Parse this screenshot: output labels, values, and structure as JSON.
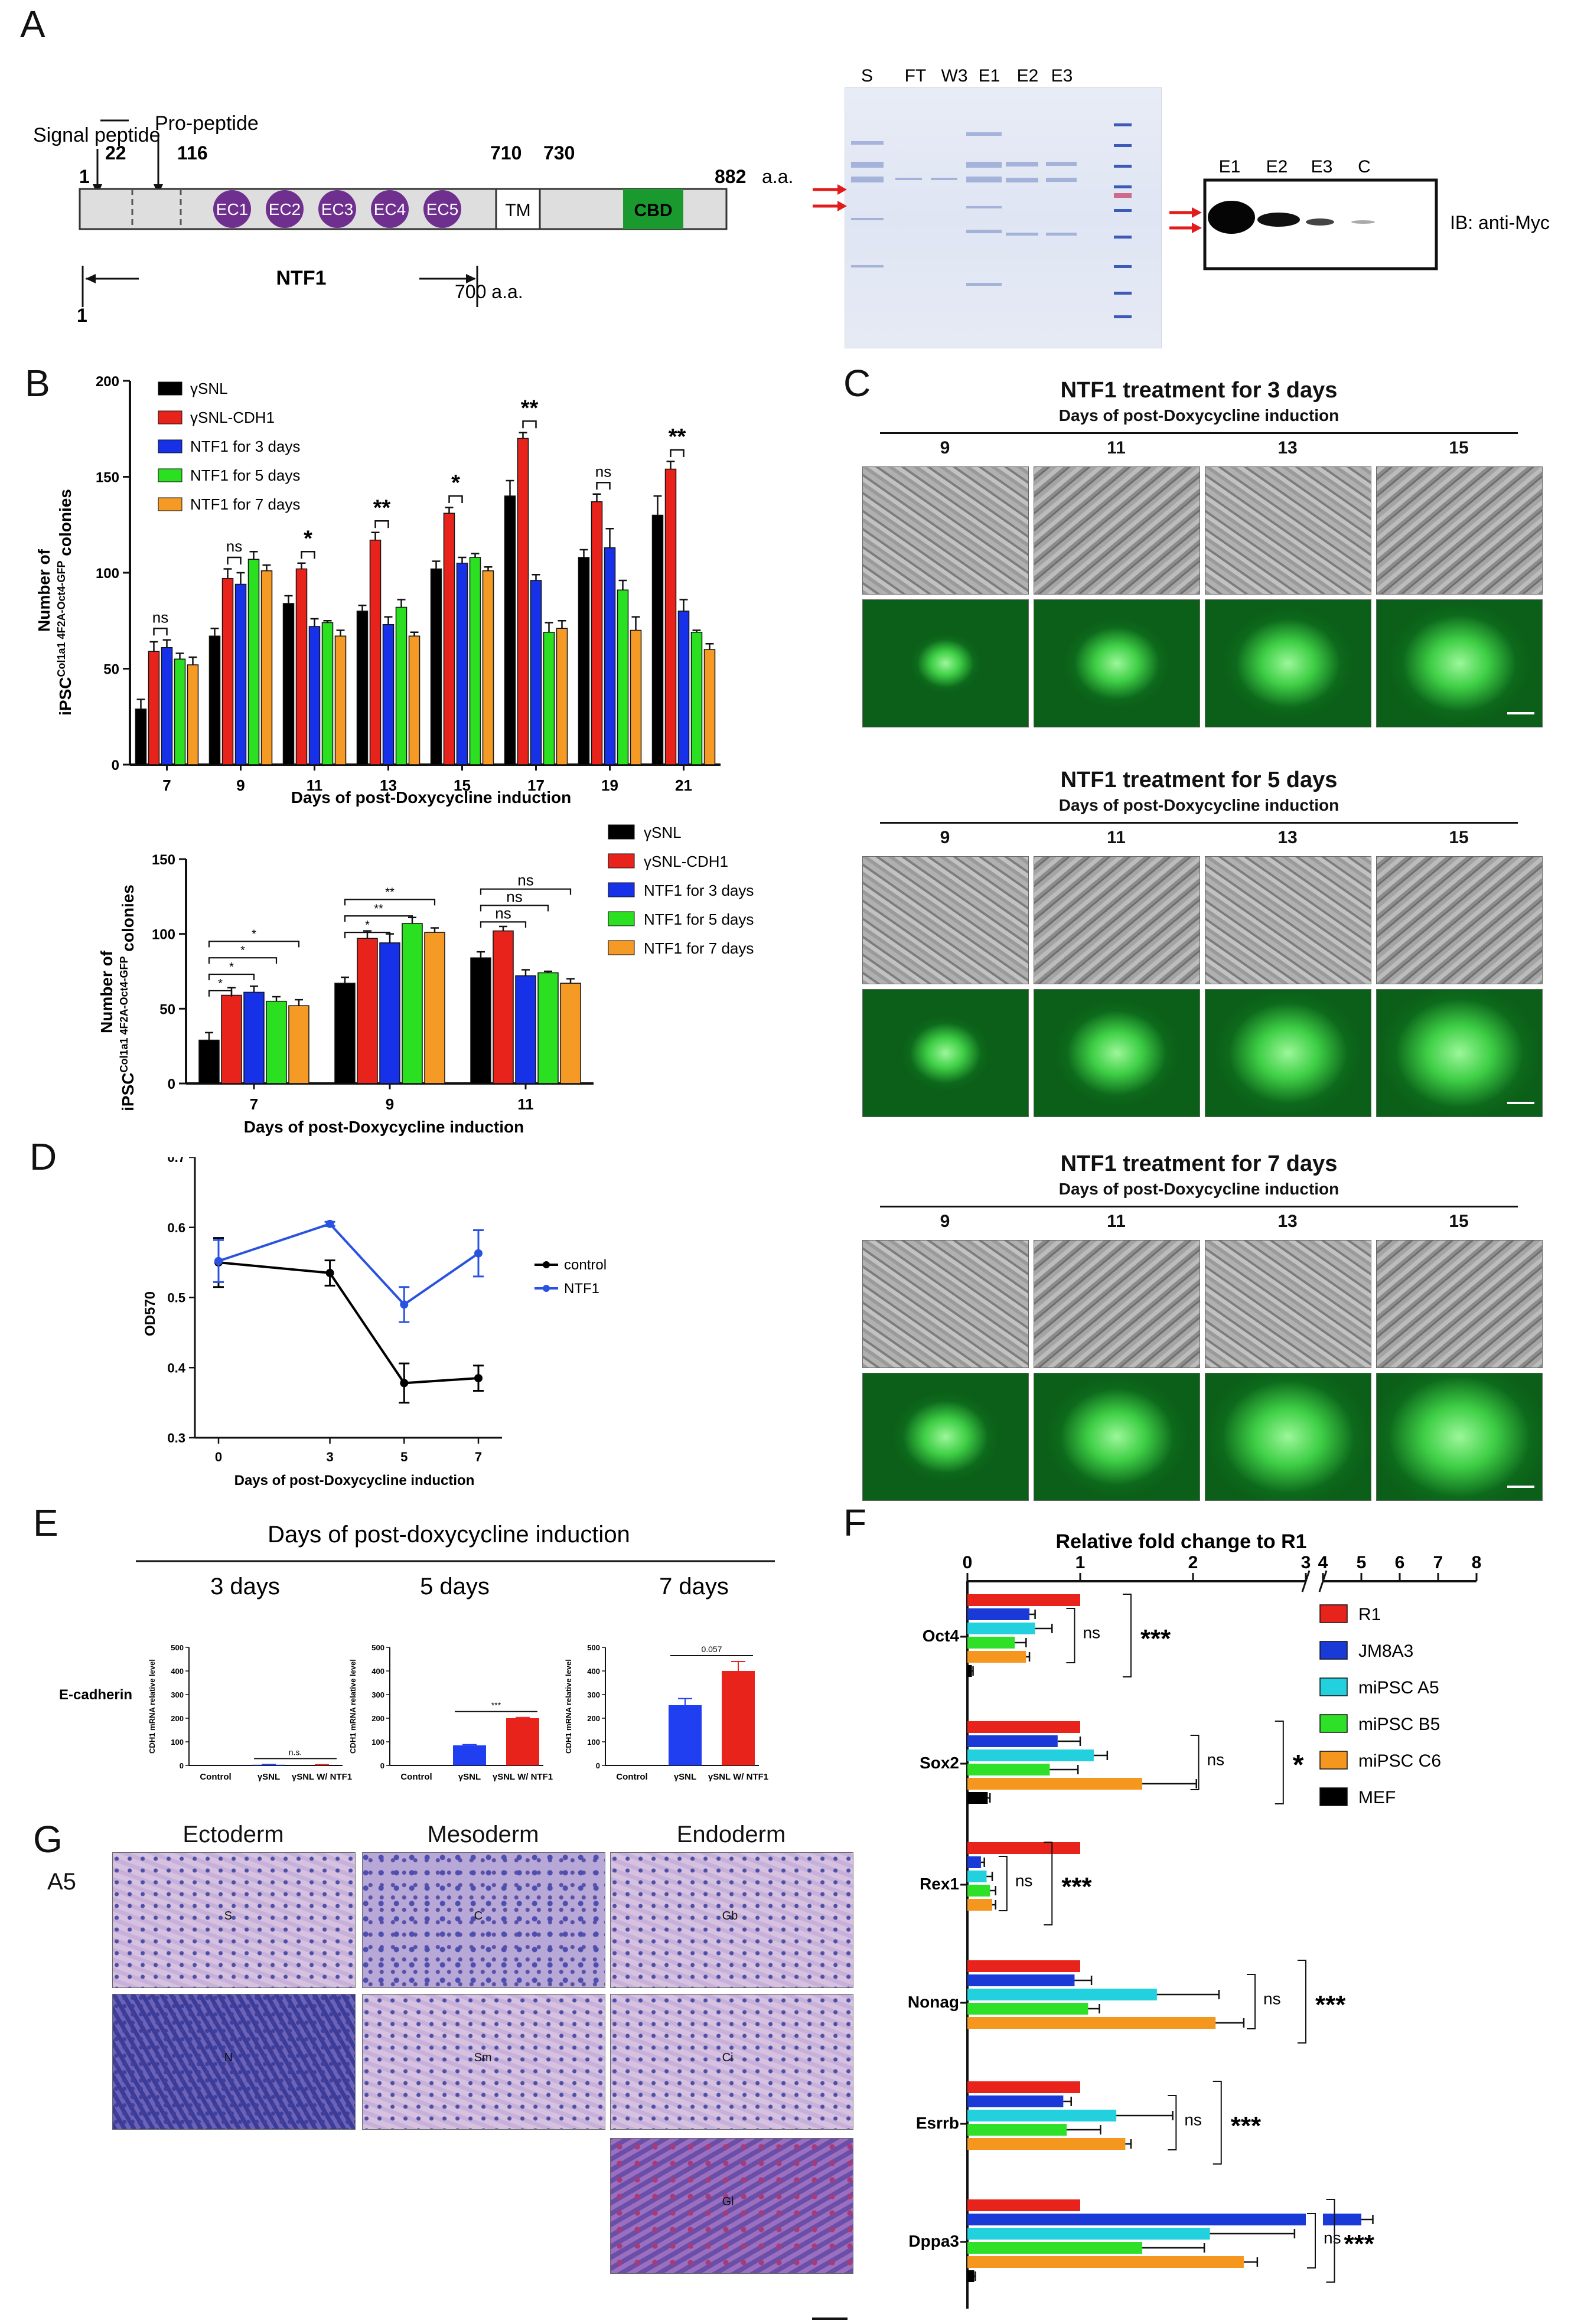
{
  "panels": {
    "a": "A",
    "b": "B",
    "c": "C",
    "d": "D",
    "e": "E",
    "f": "F",
    "g": "G"
  },
  "panelA": {
    "signal_label": "Signal peptide",
    "pro_label": "Pro-peptide",
    "pos": [
      "1",
      "22",
      "116",
      "710",
      "730",
      "882"
    ],
    "aa": "a.a.",
    "ec": [
      "EC1",
      "EC2",
      "EC3",
      "EC4",
      "EC5"
    ],
    "tm": "TM",
    "cbd": "CBD",
    "ntf1": "NTF1",
    "ntf_start": "1",
    "ntf_end": "700 a.a.",
    "gel_lanes": [
      "S",
      "FT",
      "W3",
      "E1",
      "E2",
      "E3"
    ],
    "blot_lanes": [
      "E1",
      "E2",
      "E3",
      "C"
    ],
    "blot_label": "IB: anti-Myc",
    "colors": {
      "ec": "#6f2f8f",
      "cbd": "#1a9a2e",
      "arrow": "#e21b1b"
    }
  },
  "panelB1": {
    "ylabel1": "Number of",
    "ylabel2": "iPSC",
    "ylabel_sup": "Col1a1 4F2A-Oct4-GFP",
    "ylabel3": " colonies",
    "xlabel": "Days of post-Doxycycline induction",
    "sig": [
      {
        "label": "ns"
      },
      {
        "label": "ns"
      },
      {
        "label": "*"
      },
      {
        "label": "**"
      },
      {
        "label": "*"
      },
      {
        "label": "**"
      },
      {
        "label": "ns"
      },
      {
        "label": "**"
      }
    ]
  },
  "panelB2": {
    "ylabel1": "Number of",
    "ylabel2": "iPSC",
    "ylabel_sup": "Col1a1 4F2A-Oct4-GFP",
    "ylabel3": " colonies",
    "xlabel": "Days of post-Doxycycline induction",
    "legend": [
      "γSNL",
      "γSNL-CDH1",
      "NTF1 for 3 days",
      "NTF1 for 5 days",
      "NTF1 for 7 days"
    ],
    "sig": [
      "*",
      "*",
      "*",
      "*",
      "**",
      "**",
      "*",
      "ns",
      "ns",
      "ns"
    ]
  },
  "panelC": {
    "blocks": [
      {
        "title": "NTF1 treatment for 3 days",
        "subtitle": "Days of post-Doxycycline induction",
        "days": [
          "9",
          "11",
          "13",
          "15"
        ]
      },
      {
        "title": "NTF1 treatment for 5 days",
        "subtitle": "Days of post-Doxycycline induction",
        "days": [
          "9",
          "11",
          "13",
          "15"
        ]
      },
      {
        "title": "NTF1 treatment for 7 days",
        "subtitle": "Days of post-Doxycycline induction",
        "days": [
          "9",
          "11",
          "13",
          "15"
        ]
      }
    ]
  },
  "panelD": {
    "ylabel": "OD570",
    "xlabel": "Days of post-Doxycycline induction",
    "legend": [
      "control",
      "NTF1"
    ]
  },
  "panelE": {
    "title": "Days of post-doxycycline induction",
    "times": [
      "3 days",
      "5 days",
      "7 days"
    ],
    "row_label": "E-cadherin",
    "ylabel": "CDH1 mRNA relative level",
    "cats": [
      "Control",
      "γSNL",
      "γSNL W/ NTF1"
    ],
    "sig": [
      "n.s.",
      "***",
      "0.057"
    ]
  },
  "panelF": {
    "title": "Relative fold change to R1",
    "genes": [
      "Oct4",
      "Sox2",
      "Rex1",
      "Nonag",
      "Esrrb",
      "Dppa3"
    ],
    "legend": [
      "R1",
      "JM8A3",
      "miPSC A5",
      "miPSC B5",
      "miPSC C6",
      "MEF"
    ],
    "sig": [
      [
        "ns",
        "***"
      ],
      [
        "ns",
        "*"
      ],
      [
        "ns",
        "***"
      ],
      [
        "ns",
        "***"
      ],
      [
        "ns",
        "***"
      ],
      [
        "ns",
        "***"
      ]
    ]
  },
  "panelG": {
    "sample": "A5",
    "cols": [
      "Ectoderm",
      "Mesoderm",
      "Endoderm"
    ],
    "labels": [
      "S",
      "C",
      "Gb",
      "N",
      "Sm",
      "Ci",
      "Gl",
      "Gl"
    ]
  },
  "chart_data": [
    {
      "type": "bar",
      "panel": "B-top",
      "categories": [
        "7",
        "9",
        "11",
        "13",
        "15",
        "17",
        "19",
        "21"
      ],
      "xlabel": "Days of post-Doxycycline induction",
      "ylabel": "Number of iPSC Col1a1 4F2A-Oct4-GFP colonies",
      "ylim": [
        0,
        200
      ],
      "yticks": [
        0,
        50,
        100,
        150,
        200
      ],
      "series": [
        {
          "name": "γSNL",
          "color": "#000000",
          "values": [
            29,
            67,
            84,
            80,
            102,
            140,
            108,
            130
          ],
          "err": [
            5,
            4,
            4,
            3,
            4,
            8,
            4,
            10
          ]
        },
        {
          "name": "γSNL-CDH1",
          "color": "#e8231c",
          "values": [
            59,
            97,
            102,
            117,
            131,
            170,
            137,
            154
          ],
          "err": [
            5,
            5,
            3,
            4,
            3,
            3,
            4,
            4
          ]
        },
        {
          "name": "NTF1 for 3 days",
          "color": "#1631e8",
          "values": [
            61,
            94,
            72,
            73,
            105,
            96,
            113,
            80
          ],
          "err": [
            4,
            6,
            4,
            4,
            3,
            3,
            10,
            6
          ]
        },
        {
          "name": "NTF1 for 5 days",
          "color": "#2be021",
          "values": [
            55,
            107,
            74,
            82,
            108,
            69,
            91,
            69
          ],
          "err": [
            3,
            4,
            1,
            4,
            2,
            5,
            5,
            1
          ]
        },
        {
          "name": "NTF1 for 7 days",
          "color": "#f59a25",
          "values": [
            52,
            101,
            67,
            67,
            101,
            71,
            70,
            60
          ],
          "err": [
            4,
            3,
            3,
            2,
            2,
            4,
            7,
            3
          ]
        }
      ]
    },
    {
      "type": "bar",
      "panel": "B-bottom",
      "categories": [
        "7",
        "9",
        "11"
      ],
      "xlabel": "Days of post-Doxycycline induction",
      "ylim": [
        0,
        150
      ],
      "yticks": [
        0,
        50,
        100,
        150
      ],
      "series": [
        {
          "name": "γSNL",
          "color": "#000000",
          "values": [
            29,
            67,
            84
          ],
          "err": [
            5,
            4,
            4
          ]
        },
        {
          "name": "γSNL-CDH1",
          "color": "#e8231c",
          "values": [
            59,
            97,
            102
          ],
          "err": [
            5,
            5,
            3
          ]
        },
        {
          "name": "NTF1 for 3 days",
          "color": "#1631e8",
          "values": [
            61,
            94,
            72
          ],
          "err": [
            4,
            6,
            4
          ]
        },
        {
          "name": "NTF1 for 5 days",
          "color": "#2be021",
          "values": [
            55,
            107,
            74
          ],
          "err": [
            3,
            4,
            1
          ]
        },
        {
          "name": "NTF1 for 7 days",
          "color": "#f59a25",
          "values": [
            52,
            101,
            67
          ],
          "err": [
            4,
            3,
            3
          ]
        }
      ]
    },
    {
      "type": "line",
      "panel": "D",
      "x": [
        0,
        3,
        5,
        7
      ],
      "xlabel": "Days of post-Doxycycline induction",
      "ylabel": "OD570",
      "ylim": [
        0.3,
        0.7
      ],
      "yticks": [
        0.3,
        0.4,
        0.5,
        0.6,
        0.7
      ],
      "series": [
        {
          "name": "control",
          "color": "#000000",
          "values": [
            0.55,
            0.535,
            0.378,
            0.385
          ],
          "err": [
            0.035,
            0.018,
            0.028,
            0.018
          ]
        },
        {
          "name": "NTF1",
          "color": "#2a52e0",
          "values": [
            0.552,
            0.605,
            0.49,
            0.563
          ],
          "err": [
            0.03,
            0.003,
            0.025,
            0.033
          ]
        }
      ]
    },
    {
      "type": "bar",
      "panel": "E-3days",
      "categories": [
        "Control",
        "γSNL",
        "γSNL W/ NTF1"
      ],
      "values": [
        1,
        3,
        2
      ],
      "err": [
        0,
        1,
        1
      ],
      "colors": [
        "#ffffff",
        "#1f3ff0",
        "#e8231c"
      ],
      "ylim": [
        0,
        500
      ],
      "yticks": [
        0,
        100,
        200,
        300,
        400,
        500
      ]
    },
    {
      "type": "bar",
      "panel": "E-5days",
      "categories": [
        "Control",
        "γSNL",
        "γSNL W/ NTF1"
      ],
      "values": [
        1,
        85,
        200
      ],
      "err": [
        0,
        3,
        3
      ],
      "colors": [
        "#ffffff",
        "#1f3ff0",
        "#e8231c"
      ],
      "ylim": [
        0,
        500
      ],
      "yticks": [
        0,
        100,
        200,
        300,
        400,
        500
      ]
    },
    {
      "type": "bar",
      "panel": "E-7days",
      "categories": [
        "Control",
        "γSNL",
        "γSNL W/ NTF1"
      ],
      "values": [
        1,
        255,
        400
      ],
      "err": [
        0,
        28,
        40
      ],
      "colors": [
        "#ffffff",
        "#1f3ff0",
        "#e8231c"
      ],
      "ylim": [
        0,
        500
      ],
      "yticks": [
        0,
        100,
        200,
        300,
        400,
        500
      ]
    },
    {
      "type": "bar",
      "panel": "F",
      "orientation": "horizontal",
      "categories": [
        "Oct4",
        "Sox2",
        "Rex1",
        "Nonag",
        "Esrrb",
        "Dppa3"
      ],
      "title": "Relative fold change to R1",
      "xticks": [
        0,
        1,
        2,
        3,
        4,
        5,
        6,
        7,
        8
      ],
      "xbreak": [
        3,
        4
      ],
      "series": [
        {
          "name": "R1",
          "color": "#e8231c",
          "values": [
            1,
            1,
            1,
            1,
            1,
            1
          ],
          "err": [
            0,
            0,
            0,
            0,
            0,
            0
          ]
        },
        {
          "name": "JM8A3",
          "color": "#1a3ad8",
          "values": [
            0.55,
            0.8,
            0.12,
            0.95,
            0.85,
            5.0
          ],
          "err": [
            0.05,
            0.2,
            0.03,
            0.15,
            0.07,
            0.3
          ]
        },
        {
          "name": "miPSC A5",
          "color": "#23d0de",
          "values": [
            0.6,
            1.12,
            0.17,
            1.68,
            1.32,
            2.15
          ],
          "err": [
            0.15,
            0.12,
            0.05,
            0.55,
            0.5,
            0.75
          ]
        },
        {
          "name": "miPSC B5",
          "color": "#2fe028",
          "values": [
            0.42,
            0.73,
            0.2,
            1.07,
            0.88,
            1.55
          ],
          "err": [
            0.1,
            0.25,
            0.05,
            0.1,
            0.3,
            0.55
          ]
        },
        {
          "name": "miPSC C6",
          "color": "#f5961f",
          "values": [
            0.52,
            1.55,
            0.22,
            2.2,
            1.4,
            2.45
          ],
          "err": [
            0.03,
            0.48,
            0.03,
            0.25,
            0.05,
            0.12
          ]
        },
        {
          "name": "MEF",
          "color": "#000000",
          "values": [
            0.04,
            0.18,
            0,
            0,
            0,
            0.06
          ],
          "err": [
            0.01,
            0.02,
            0,
            0,
            0,
            0.01
          ]
        }
      ]
    }
  ]
}
